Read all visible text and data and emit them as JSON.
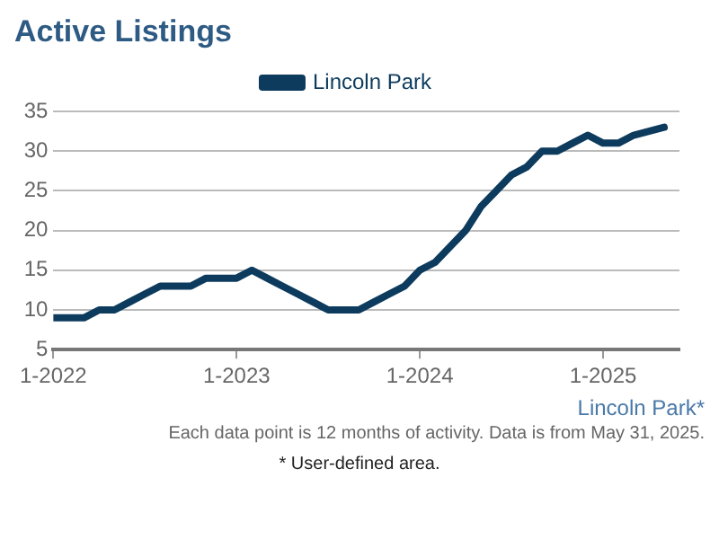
{
  "chart_data": {
    "type": "line",
    "title": "Active Listings",
    "x": [
      "2022-01",
      "2022-02",
      "2022-03",
      "2022-04",
      "2022-05",
      "2022-06",
      "2022-07",
      "2022-08",
      "2022-09",
      "2022-10",
      "2022-11",
      "2022-12",
      "2023-01",
      "2023-02",
      "2023-03",
      "2023-04",
      "2023-05",
      "2023-06",
      "2023-07",
      "2023-08",
      "2023-09",
      "2023-10",
      "2023-11",
      "2023-12",
      "2024-01",
      "2024-02",
      "2024-03",
      "2024-04",
      "2024-05",
      "2024-06",
      "2024-07",
      "2024-08",
      "2024-09",
      "2024-10",
      "2024-11",
      "2024-12",
      "2025-01",
      "2025-02",
      "2025-03",
      "2025-04",
      "2025-05"
    ],
    "series": [
      {
        "name": "Lincoln Park",
        "color": "#0d3b5e",
        "values": [
          9,
          9,
          9,
          10,
          10,
          11,
          12,
          13,
          13,
          13,
          14,
          14,
          14,
          15,
          14,
          13,
          12,
          11,
          10,
          10,
          10,
          11,
          12,
          13,
          15,
          16,
          18,
          20,
          23,
          25,
          27,
          28,
          30,
          30,
          31,
          32,
          31,
          31,
          32,
          32.5,
          33
        ]
      }
    ],
    "xlim": [
      "2022-01",
      "2025-06"
    ],
    "xticks": [
      {
        "value": "2022-01",
        "label": "1-2022"
      },
      {
        "value": "2023-01",
        "label": "1-2023"
      },
      {
        "value": "2024-01",
        "label": "1-2024"
      },
      {
        "value": "2025-01",
        "label": "1-2025"
      }
    ],
    "ylim": [
      5,
      35
    ],
    "yticks": [
      5,
      10,
      15,
      20,
      25,
      30,
      35
    ],
    "grid": "y",
    "legend": "top",
    "marker": "none",
    "line_style": "solid",
    "annotations": [
      "Lincoln Park*",
      "Each data point is 12 months of activity. Data is from May 31, 2025.",
      "* User-defined area."
    ]
  }
}
